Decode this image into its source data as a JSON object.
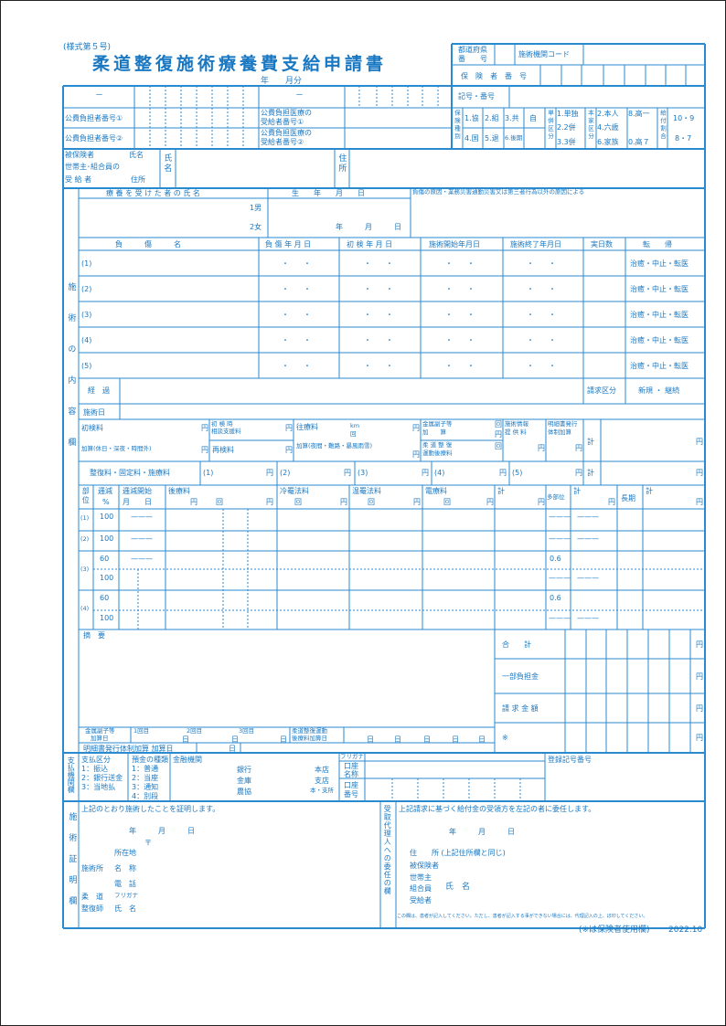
{
  "header": {
    "form_no": "(様式第５号)",
    "title": "柔道整復施術療養費支給申請書",
    "period": "年　　月分"
  },
  "top_right": {
    "pref_1": "都道府県",
    "pref_2": "番　　号",
    "facility_code": "施術機関コード",
    "insurer_no": "保　険　者　番　号",
    "symbol": "記号・番号"
  },
  "id_row": {
    "dash": "－"
  },
  "public": {
    "burden1": "公費負担者番号①",
    "burden2": "公費負担者番号②",
    "recip_a": "公費負担医療の",
    "recip1_b": "受給者番号①",
    "recip2_b": "受給者番号②"
  },
  "insurance": {
    "type_label": "保険種別",
    "types": [
      "1.協",
      "2.組",
      "3.共",
      "自",
      "4.国",
      "5.退",
      "6.後期"
    ],
    "single_label": "単併区分",
    "single": [
      "1.単独",
      "2.2併",
      "3.3併"
    ],
    "family_label": "本家区分",
    "family": [
      "2.本人",
      "4.六歳",
      "6.家族",
      "8.高一",
      "0.高７"
    ],
    "ratio_label": "給付割合",
    "ratio": [
      "10・9",
      "8・7"
    ]
  },
  "insured": {
    "l1": "被保険者",
    "name": "氏名",
    "l2": "世帯主･組合員の",
    "l3": "受 給 者",
    "addr": "住所",
    "name_v": "氏名",
    "addr_v": "住所"
  },
  "patient": {
    "name_header": "療 養 を 受 け た 者 の 氏 名",
    "dob_header": "生　　年　　月　　日",
    "cause": "負傷の原因・業務災害通勤災害又は第三者行為以外の原因による",
    "male": "1男",
    "female": "2女",
    "date": "年　　　月　　　日"
  },
  "injury": {
    "headers": [
      "負　　　傷　　　名",
      "負 傷 年 月 日",
      "初 検 年 月 日",
      "施術開始年月日",
      "施術終了年月日",
      "実日数",
      "転　　帰"
    ],
    "rows": [
      "(1)",
      "(2)",
      "(3)",
      "(4)",
      "(5)"
    ],
    "dots": "・　　・",
    "outcome": "治癒・中止・転医"
  },
  "section_label": "施術の内容欄",
  "progress": {
    "label": "経　過",
    "claim_label": "請求区分",
    "claim_value": "新規 ・ 継続",
    "dates_label": "施術日"
  },
  "fees": {
    "initial": "初検料",
    "yen": "円",
    "initial_consult_1": "初 検 時",
    "initial_consult_2": "相談支援料",
    "recheck": "再検料",
    "surcharge": "加算(休日・深夜・時間外)",
    "visit": "往療料",
    "km": "km",
    "times": "回",
    "visit_surcharge": "加算(夜間・難路・暴風雨雪)",
    "splint_1": "金属副子等",
    "splint_2": "加　　算",
    "exercise_1": "柔 道 整 復",
    "exercise_2": "運動後療料",
    "info_1": "施術情報",
    "info_2": "提 供 料",
    "statement_1": "明細書発行",
    "statement_2": "体制加算",
    "total": "計"
  },
  "reduction": {
    "label": "整復料・固定料・施療料",
    "items": [
      "(1)",
      "(2)",
      "(3)",
      "(4)",
      "(5)"
    ]
  },
  "parts": {
    "part": "部位",
    "decr": "逓減",
    "pct": "%",
    "decr_start": "逓減開始",
    "month_day": "月　　日",
    "aftercare": "後療料",
    "cold": "冷罨法料",
    "warm": "温罨法料",
    "electro": "電療料",
    "total": "計",
    "multi": "多部位",
    "long": "長期",
    "row_labels": [
      "(1)",
      "(2)",
      "(3)",
      "(4)"
    ],
    "values": [
      "100",
      "100",
      "60",
      "100",
      "60",
      "100"
    ],
    "dash": "———",
    "rate": "0.6"
  },
  "summary": {
    "label": "摘　要",
    "sum": "合　　計",
    "copay": "一部負担金",
    "claim": "請 求 金 額",
    "note_mark": "※"
  },
  "addon_dates": {
    "splint_1": "金属副子等",
    "splint_2": "加算日",
    "first": "1回目",
    "second": "2回目",
    "third": "3回目",
    "day": "日",
    "exercise_1": "柔道整復運動",
    "exercise_2": "後療料加算日",
    "statement": "明細書発行体制加算 加算日"
  },
  "payment": {
    "label": "支払機関欄",
    "method": "支払区分",
    "methods": [
      "1：振込",
      "2：銀行送金",
      "3：当地払"
    ],
    "deposit": "預金の種類",
    "deposits": [
      "1：普通",
      "2：当座",
      "3：通知",
      "4：別段"
    ],
    "institution": "金融機関",
    "banks": [
      "銀行",
      "金庫",
      "農協"
    ],
    "branches": [
      "本店",
      "支店",
      "本・支所"
    ],
    "furigana": "フリガナ",
    "acct_name_1": "口座",
    "acct_name_2": "名称",
    "acct_no_1": "口座",
    "acct_no_2": "番号",
    "registration": "登録記号番号"
  },
  "certification": {
    "label": "施術証明欄",
    "statement": "上記のとおり施術したことを証明します。",
    "date": "年　　　月　　　日",
    "postal": "〒",
    "location": "所在地",
    "clinic": "施術所",
    "clinic_name": "名　称",
    "phone": "電　話",
    "judo": "柔　道",
    "furigana": "フリガナ",
    "therapist": "整復師",
    "therapist_name": "氏　名"
  },
  "proxy": {
    "label": "受取代理人への委任の欄",
    "statement": "上記請求に基づく給付金の受領方を左記の者に委任します。",
    "date": "年　　　月　　　日",
    "address": "住　　所 (上記住所欄と同じ)",
    "insured": "被保険者",
    "householder": "世帯主",
    "member": "組合員",
    "recipient": "受給者",
    "name": "氏　名",
    "note": "この欄は、患者が記入してください。ただし、患者が記入する事ができない場合には、代理記入の上、ぼ印してください。"
  },
  "footer": {
    "note": "(※は保険者使用欄)",
    "version": "2022.10"
  },
  "colors": {
    "line": "#2a8ad0",
    "text": "#1a78c2"
  }
}
